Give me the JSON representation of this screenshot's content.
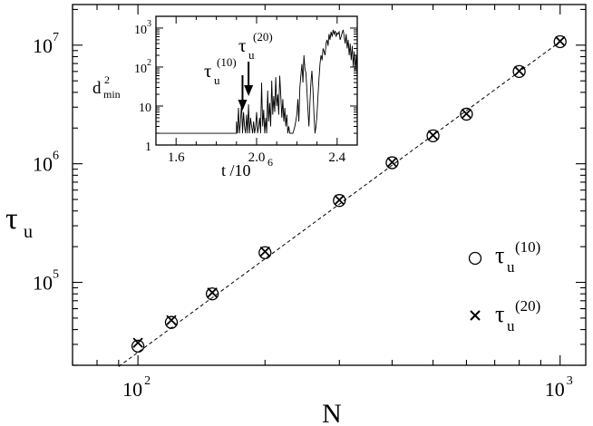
{
  "chart_data": [
    {
      "type": "scatter",
      "xlabel": "N",
      "ylabel": "τu",
      "ylabel_main": "τ",
      "ylabel_sub": "u",
      "xscale": "log",
      "yscale": "log",
      "xlim": [
        70,
        1150
      ],
      "ylim": [
        20000,
        22000000
      ],
      "grid": false,
      "legend_placement": "right",
      "x_major_ticks": [
        {
          "value": 100,
          "base": "10",
          "exp": "2"
        },
        {
          "value": 1000,
          "base": "10",
          "exp": "3"
        }
      ],
      "y_major_ticks": [
        {
          "value": 100000,
          "base": "10",
          "exp": "5"
        },
        {
          "value": 1000000,
          "base": "10",
          "exp": "6"
        },
        {
          "value": 10000000,
          "base": "10",
          "exp": "7"
        }
      ],
      "series": [
        {
          "name": "τu(10)",
          "name_main": "τ",
          "name_sub": "u",
          "name_sup": "(10)",
          "marker": "circle",
          "x": [
            100,
            120,
            150,
            200,
            300,
            400,
            500,
            600,
            800,
            1000
          ],
          "y": [
            29000,
            46000,
            80000,
            178000,
            490000,
            1020000,
            1720000,
            2620000,
            6000000,
            10700000
          ]
        },
        {
          "name": "τu(20)",
          "name_main": "τ",
          "name_sub": "u",
          "name_sup": "(20)",
          "marker": "x",
          "x": [
            100,
            120,
            150,
            200,
            300,
            400,
            500,
            600,
            800,
            1000
          ],
          "y": [
            31000,
            48000,
            82000,
            182000,
            495000,
            1030000,
            1740000,
            2640000,
            6050000,
            10800000
          ]
        }
      ],
      "fit_line": {
        "style": "dashed",
        "x": [
          90,
          1000
        ],
        "y": [
          19500,
          10700000
        ]
      }
    },
    {
      "type": "line",
      "inset": true,
      "xlabel": "t /10",
      "xlabel_sup": "6",
      "ylabel": "d²min",
      "ylabel_main": "d",
      "ylabel_sup": "2",
      "ylabel_sub": "min",
      "xlim": [
        1.5,
        2.5
      ],
      "ylim": [
        1,
        2000
      ],
      "yscale": "log",
      "x_ticks": [
        {
          "value": 1.6,
          "label": "1.6"
        },
        {
          "value": 2.0,
          "label": "2.0"
        },
        {
          "value": 2.4,
          "label": "2.4"
        }
      ],
      "y_ticks": [
        {
          "value": 1,
          "label": "1"
        },
        {
          "value": 10,
          "label": "10"
        },
        {
          "value": 100,
          "label": "10",
          "sup": "2"
        },
        {
          "value": 1000,
          "label": "10",
          "sup": "3"
        }
      ],
      "annotations": [
        {
          "text": "τu(10)",
          "main": "τ",
          "sub": "u",
          "sup": "(10)",
          "arrow_x": 1.93
        },
        {
          "text": "τu(20)",
          "main": "τ",
          "sub": "u",
          "sup": "(20)",
          "arrow_x": 1.96
        }
      ],
      "series": [
        {
          "x": [
            1.5,
            1.9,
            1.9,
            1.905,
            1.91,
            1.915,
            1.92,
            1.925,
            1.93,
            1.935,
            1.94,
            1.945,
            1.95,
            1.955,
            1.96,
            1.965,
            1.97,
            1.975,
            1.98,
            1.985,
            1.99,
            1.995,
            2.0,
            2.005,
            2.01,
            2.015,
            2.02,
            2.025,
            2.03,
            2.035,
            2.04,
            2.045,
            2.05,
            2.055,
            2.06,
            2.065,
            2.07,
            2.075,
            2.08,
            2.085,
            2.09,
            2.095,
            2.1,
            2.105,
            2.11,
            2.115,
            2.12,
            2.125,
            2.13,
            2.135,
            2.14,
            2.145,
            2.15,
            2.155,
            2.16,
            2.165,
            2.17,
            2.18,
            2.19,
            2.2,
            2.205,
            2.21,
            2.215,
            2.22,
            2.225,
            2.23,
            2.235,
            2.24,
            2.245,
            2.25,
            2.255,
            2.26,
            2.265,
            2.27,
            2.275,
            2.28,
            2.285,
            2.29,
            2.295,
            2.3,
            2.305,
            2.31,
            2.315,
            2.32,
            2.325,
            2.33,
            2.335,
            2.34,
            2.345,
            2.35,
            2.355,
            2.36,
            2.365,
            2.37,
            2.375,
            2.38,
            2.385,
            2.39,
            2.395,
            2.4,
            2.405,
            2.41,
            2.415,
            2.42,
            2.425,
            2.43,
            2.435,
            2.44,
            2.445,
            2.45,
            2.455,
            2.46,
            2.465,
            2.47,
            2.475,
            2.48,
            2.485,
            2.49,
            2.495,
            2.5
          ],
          "y": [
            2,
            2,
            4,
            2,
            9,
            2,
            4,
            12,
            2,
            7,
            3,
            2,
            6,
            2,
            11,
            2,
            5,
            3,
            2,
            4,
            2,
            3,
            7,
            2,
            3,
            5,
            2,
            40,
            3,
            8,
            2,
            5,
            2,
            25,
            4,
            12,
            3,
            45,
            6,
            18,
            7,
            55,
            10,
            20,
            6,
            60,
            20,
            5,
            15,
            4,
            9,
            3,
            6,
            2,
            3,
            2,
            2,
            2,
            3,
            6,
            15,
            4,
            30,
            60,
            120,
            40,
            200,
            90,
            70,
            25,
            8,
            3,
            12,
            40,
            80,
            25,
            6,
            2,
            3,
            6,
            18,
            50,
            120,
            200,
            150,
            300,
            250,
            200,
            400,
            500,
            350,
            700,
            500,
            800,
            600,
            900,
            700,
            850,
            600,
            750,
            700,
            800,
            500,
            600,
            750,
            900,
            600,
            400,
            700,
            300,
            500,
            200,
            400,
            150,
            350,
            100,
            250,
            80,
            200,
            60
          ]
        }
      ]
    }
  ]
}
